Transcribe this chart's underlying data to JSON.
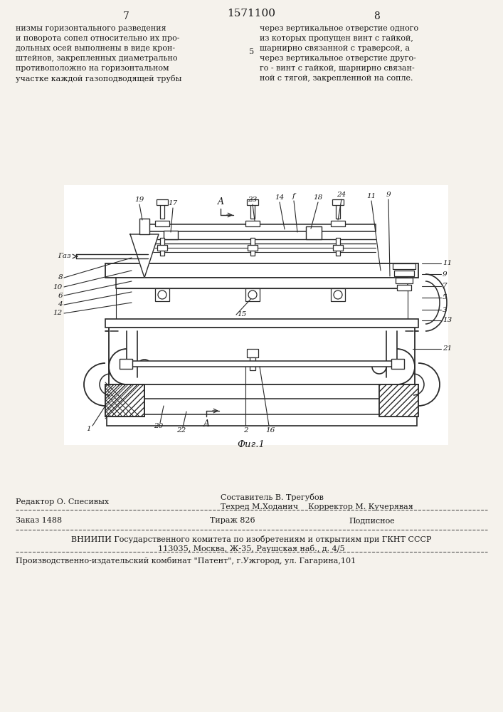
{
  "page_number_left": "7",
  "page_number_center": "1571100",
  "page_number_right": "8",
  "text_left": "низмы горизонтального разведения\nи поворота сопел относительно их про-\nдольных осей выполнены в виде крон-\nштейнов, закрепленных диаметрально\nпротивоположно на горизонтальном\nучастке каждой газоподводящей трубы",
  "text_right": "через вертикальное отверстие одного\nиз которых пропущен винт с гайкой,\nшарнирно связанной с траверсой, а\nчерез вертикальное отверстие друго-\nго - винт с гайкой, шарнирно связан-\nной с тягой, закрепленной на сопле.",
  "fig_label": "Фиг.1",
  "editor_line": "Редактор О. Спесивых",
  "compiler_line": "Составитель В. Трегубов",
  "techred_line": "Техред М.Ходанич    Корректор М. Кучерявая",
  "order_line": "Заказ 1488",
  "tirazh_line": "Тираж 826",
  "podpisnoe_line": "Подписное",
  "vniipи_line": "ВНИИПИ Государственного комитета по изобретениям и открытиям при ГКНТ СССР",
  "address_line": "113035, Москва, Ж-35, Раушская наб., д. 4/5",
  "publisher_line": "Производственно-издательский комбинат \"Патент\", г.Ужгород, ул. Гагарина,101",
  "bg_color": "#f5f2ec",
  "text_color": "#1a1a1a",
  "line_color": "#2a2a2a"
}
